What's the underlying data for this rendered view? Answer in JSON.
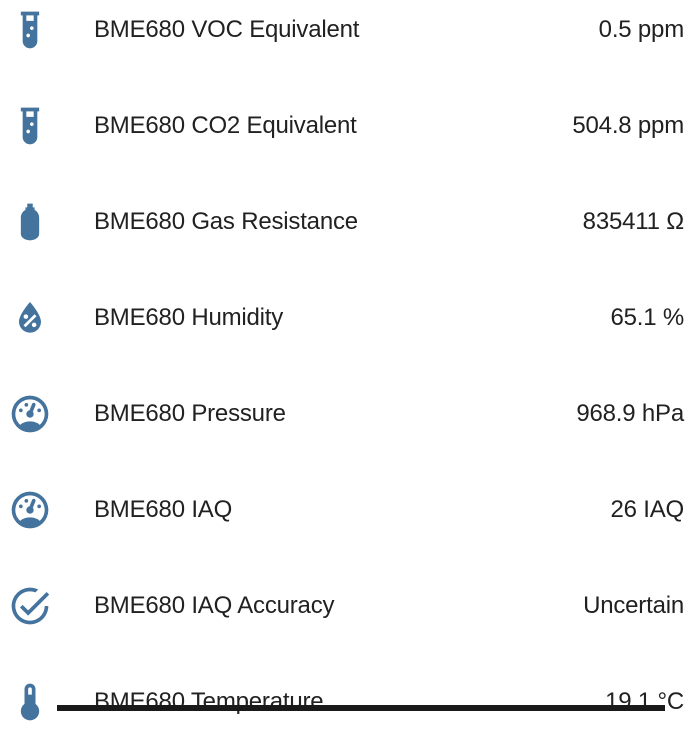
{
  "colors": {
    "icon": "#44739e",
    "text": "#212121",
    "background": "#ffffff",
    "bottom_bar": "#1a1a1a"
  },
  "rows": [
    {
      "icon": "test-tube-icon",
      "label": "BME680 VOC Equivalent",
      "value": "0.5 ppm"
    },
    {
      "icon": "test-tube-icon",
      "label": "BME680 CO2 Equivalent",
      "value": "504.8 ppm"
    },
    {
      "icon": "gas-cylinder-icon",
      "label": "BME680 Gas Resistance",
      "value": "835411 Ω"
    },
    {
      "icon": "water-percent-icon",
      "label": "BME680 Humidity",
      "value": "65.1 %"
    },
    {
      "icon": "gauge-icon",
      "label": "BME680 Pressure",
      "value": "968.9 hPa"
    },
    {
      "icon": "gauge-icon",
      "label": "BME680 IAQ",
      "value": "26 IAQ"
    },
    {
      "icon": "check-circle-icon",
      "label": "BME680 IAQ Accuracy",
      "value": "Uncertain"
    },
    {
      "icon": "thermometer-icon",
      "label": "BME680 Temperature",
      "value": "19.1 °C"
    }
  ]
}
